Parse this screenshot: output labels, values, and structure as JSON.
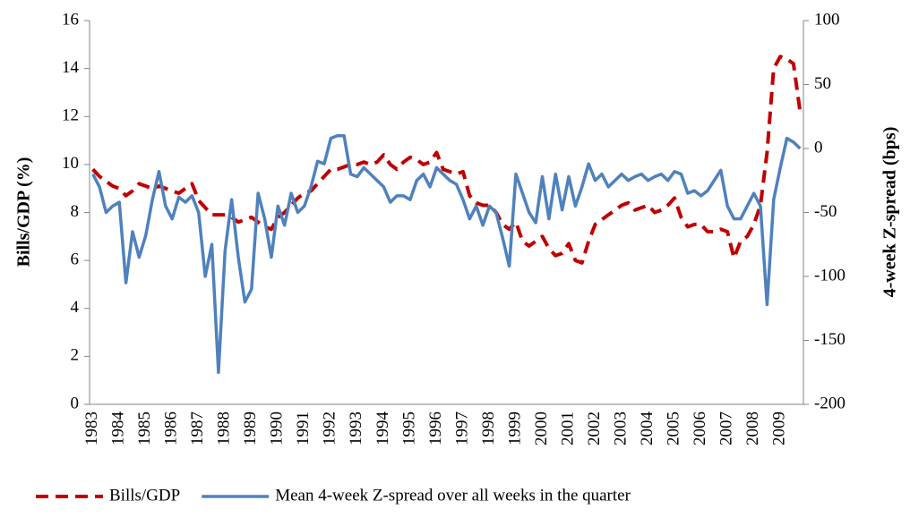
{
  "chart_data": {
    "type": "line",
    "ylabel": "Bills/GDP (%)",
    "y2label": "4-week Z-spread (bps)",
    "categories": [
      "1983",
      null,
      null,
      null,
      "1984",
      null,
      null,
      null,
      "1985",
      null,
      null,
      null,
      "1986",
      null,
      null,
      null,
      "1987",
      null,
      null,
      null,
      "1988",
      null,
      null,
      null,
      "1989",
      null,
      null,
      null,
      "1990",
      null,
      null,
      null,
      "1991",
      null,
      null,
      null,
      "1992",
      null,
      null,
      null,
      "1993",
      null,
      null,
      null,
      "1994",
      null,
      null,
      null,
      "1995",
      null,
      null,
      null,
      "1996",
      null,
      null,
      null,
      "1997",
      null,
      null,
      null,
      "1998",
      null,
      null,
      null,
      "1999",
      null,
      null,
      null,
      "2000",
      null,
      null,
      null,
      "2001",
      null,
      null,
      null,
      "2002",
      null,
      null,
      null,
      "2003",
      null,
      null,
      null,
      "2004",
      null,
      null,
      null,
      "2005",
      null,
      null,
      null,
      "2006",
      null,
      null,
      null,
      "2007",
      null,
      null,
      null,
      "2008",
      null,
      null,
      null,
      "2009",
      null,
      null,
      null
    ],
    "series": [
      {
        "name": "Bills/GDP",
        "color": "#c00000",
        "dash": true,
        "values": [
          9.8,
          9.5,
          9.3,
          9.1,
          9.0,
          8.7,
          8.9,
          9.2,
          9.1,
          9.0,
          9.1,
          9.0,
          8.9,
          8.8,
          9.0,
          9.2,
          8.5,
          8.2,
          7.9,
          7.9,
          7.9,
          7.8,
          7.6,
          7.7,
          7.8,
          7.6,
          7.4,
          7.3,
          7.8,
          8.0,
          8.3,
          8.6,
          8.8,
          8.9,
          9.2,
          9.5,
          9.8,
          9.8,
          9.9,
          10.0,
          10.0,
          10.1,
          10.0,
          10.1,
          10.4,
          10.0,
          9.8,
          10.1,
          10.3,
          10.2,
          10.0,
          10.1,
          10.5,
          9.8,
          9.7,
          9.6,
          9.7,
          8.7,
          8.4,
          8.3,
          8.3,
          8.0,
          7.5,
          7.3,
          7.6,
          6.8,
          6.6,
          6.8,
          7.0,
          6.5,
          6.2,
          6.3,
          6.7,
          6.0,
          5.9,
          6.8,
          7.5,
          7.7,
          7.9,
          8.1,
          8.3,
          8.4,
          8.1,
          8.2,
          8.3,
          8.0,
          8.1,
          8.3,
          8.6,
          7.8,
          7.4,
          7.5,
          7.5,
          7.2,
          7.2,
          7.3,
          7.2,
          6.1,
          6.8,
          7.0,
          7.5,
          8.3,
          10.5,
          14.0,
          14.5,
          14.4,
          14.2,
          12.2
        ]
      },
      {
        "name": "Mean 4-week Z-spread over all weeks in the quarter",
        "color": "#4f81bd",
        "axis": "y2",
        "values": [
          -20,
          -30,
          -50,
          -45,
          -42,
          -105,
          -65,
          -85,
          -68,
          -40,
          -18,
          -45,
          -55,
          -38,
          -42,
          -37,
          -50,
          -100,
          -75,
          -175,
          -80,
          -40,
          -85,
          -120,
          -110,
          -35,
          -55,
          -85,
          -45,
          -60,
          -35,
          -50,
          -45,
          -30,
          -10,
          -12,
          8,
          10,
          10,
          -20,
          -22,
          -15,
          -20,
          -25,
          -30,
          -42,
          -37,
          -37,
          -40,
          -25,
          -20,
          -30,
          -15,
          -20,
          -25,
          -28,
          -40,
          -55,
          -45,
          -60,
          -45,
          -50,
          -70,
          -92,
          -20,
          -35,
          -50,
          -58,
          -22,
          -55,
          -20,
          -48,
          -22,
          -45,
          -30,
          -12,
          -25,
          -20,
          -30,
          -25,
          -20,
          -25,
          -22,
          -20,
          -25,
          -22,
          -20,
          -25,
          -18,
          -20,
          -35,
          -33,
          -37,
          -33,
          -25,
          -17,
          -45,
          -55,
          -55,
          -45,
          -35,
          -45,
          -122,
          -40,
          -15,
          8,
          5,
          0
        ]
      }
    ],
    "ylim": [
      0,
      16
    ],
    "yticks": [
      0,
      2,
      4,
      6,
      8,
      10,
      12,
      14,
      16
    ],
    "y2lim": [
      -200,
      100
    ],
    "y2ticks": [
      -200,
      -150,
      -100,
      -50,
      0,
      50,
      100
    ],
    "legend": "bottom"
  }
}
